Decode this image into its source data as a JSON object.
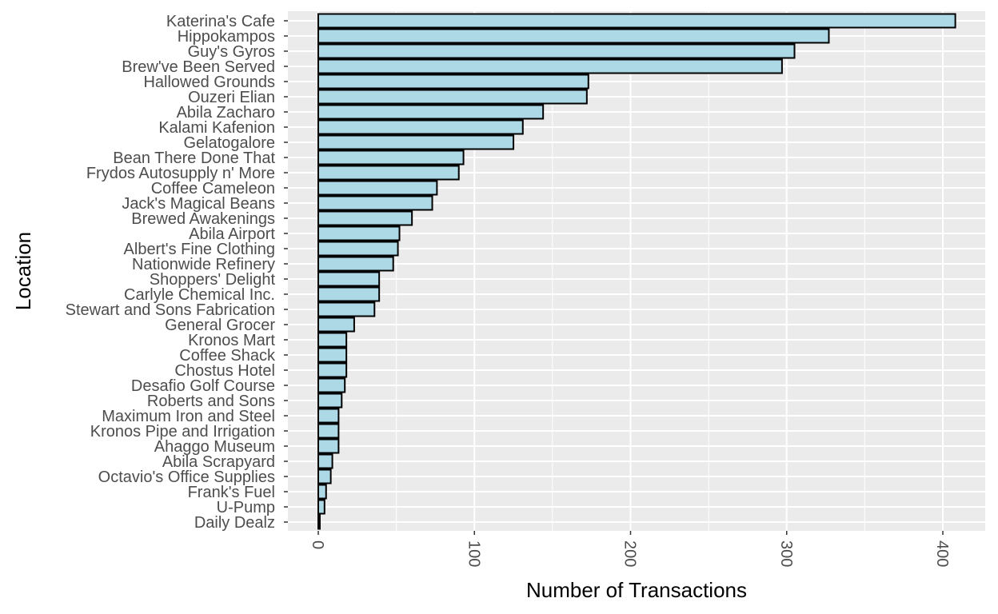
{
  "chart_data": {
    "type": "bar",
    "orientation": "horizontal",
    "xlabel": "Number of Transactions",
    "ylabel": "Location",
    "xlim": [
      0,
      425
    ],
    "xticks": [
      0,
      100,
      200,
      300,
      400
    ],
    "tick_labels": [
      "0",
      "100",
      "200",
      "300",
      "400"
    ],
    "grid": true,
    "categories": [
      "Katerina's Cafe",
      "Hippokampos",
      "Guy's Gyros",
      "Brew've Been Served",
      "Hallowed Grounds",
      "Ouzeri Elian",
      "Abila Zacharo",
      "Kalami Kafenion",
      "Gelatogalore",
      "Bean There Done That",
      "Frydos Autosupply n' More",
      "Coffee Cameleon",
      "Jack's Magical Beans",
      "Brewed Awakenings",
      "Abila Airport",
      "Albert's Fine Clothing",
      "Nationwide Refinery",
      "Shoppers' Delight",
      "Carlyle Chemical Inc.",
      "Stewart and Sons Fabrication",
      "General Grocer",
      "Kronos Mart",
      "Coffee Shack",
      "Chostus Hotel",
      "Desafio Golf Course",
      "Roberts and Sons",
      "Maximum Iron and Steel",
      "Kronos Pipe and Irrigation",
      "Ahaggo Museum",
      "Abila Scrapyard",
      "Octavio's Office Supplies",
      "Frank's Fuel",
      "U-Pump",
      "Daily Dealz"
    ],
    "values": [
      408,
      327,
      305,
      297,
      173,
      172,
      144,
      131,
      125,
      93,
      90,
      76,
      73,
      60,
      52,
      51,
      48,
      39,
      39,
      36,
      23,
      18,
      18,
      18,
      17,
      15,
      13,
      13,
      13,
      9,
      8,
      5,
      4,
      1
    ],
    "colors": {
      "bar_fill": "#add8e6",
      "bar_stroke": "#000000",
      "panel_bg": "#ebebeb",
      "grid": "#ffffff"
    }
  }
}
